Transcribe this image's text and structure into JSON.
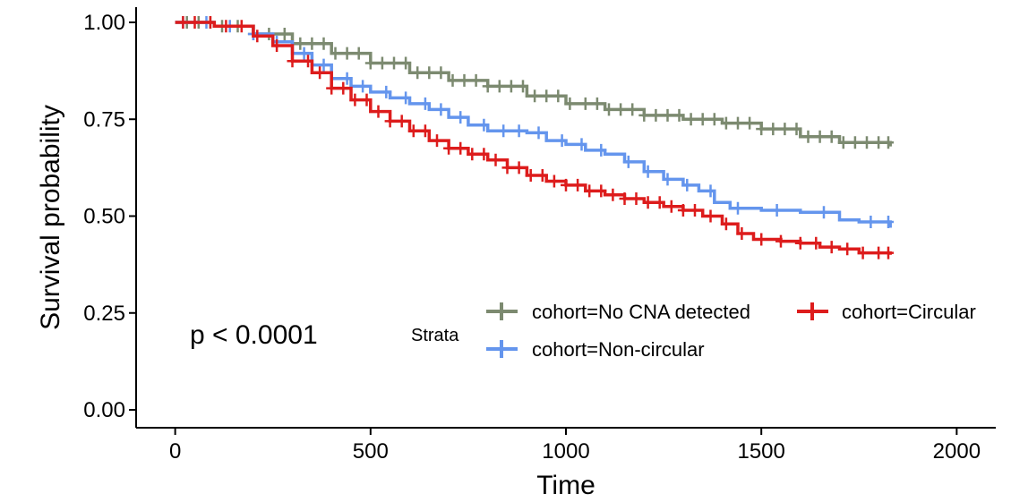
{
  "chart_data": {
    "type": "line",
    "subtype": "kaplan-meier",
    "title": "",
    "xlabel": "Time",
    "ylabel": "Survival probability",
    "xlim": [
      -100,
      2100
    ],
    "ylim": [
      0,
      1.0
    ],
    "x_ticks": [
      0,
      500,
      1000,
      1500,
      2000
    ],
    "x_tick_labels": [
      "0",
      "500",
      "1000",
      "1500",
      "2000"
    ],
    "y_ticks": [
      0,
      0.25,
      0.5,
      0.75,
      1.0
    ],
    "y_tick_labels": [
      "0.00",
      "0.25",
      "0.50",
      "0.75",
      "1.00"
    ],
    "grid": false,
    "annotation": "p < 0.0001",
    "legend": {
      "title": "Strata",
      "placement": "bottom-right"
    },
    "series": [
      {
        "name": "cohort=No CNA detected",
        "color": "#7c8a70",
        "points": [
          [
            0,
            1.0
          ],
          [
            100,
            0.99
          ],
          [
            200,
            0.97
          ],
          [
            300,
            0.945
          ],
          [
            400,
            0.92
          ],
          [
            500,
            0.895
          ],
          [
            600,
            0.87
          ],
          [
            700,
            0.85
          ],
          [
            800,
            0.835
          ],
          [
            900,
            0.81
          ],
          [
            1000,
            0.79
          ],
          [
            1100,
            0.775
          ],
          [
            1200,
            0.76
          ],
          [
            1300,
            0.75
          ],
          [
            1400,
            0.74
          ],
          [
            1500,
            0.725
          ],
          [
            1600,
            0.705
          ],
          [
            1700,
            0.69
          ],
          [
            1830,
            0.68
          ]
        ],
        "censor_times": [
          30,
          60,
          90,
          120,
          160,
          200,
          240,
          280,
          320,
          350,
          380,
          410,
          440,
          470,
          500,
          530,
          560,
          590,
          620,
          650,
          680,
          710,
          740,
          770,
          800,
          830,
          860,
          890,
          920,
          950,
          980,
          1010,
          1050,
          1080,
          1110,
          1140,
          1170,
          1200,
          1230,
          1260,
          1290,
          1320,
          1350,
          1380,
          1410,
          1440,
          1470,
          1500,
          1530,
          1560,
          1590,
          1620,
          1650,
          1680,
          1710,
          1740,
          1770,
          1800,
          1825
        ]
      },
      {
        "name": "cohort=Non-circular",
        "color": "#6495ed",
        "points": [
          [
            0,
            1.0
          ],
          [
            100,
            0.99
          ],
          [
            200,
            0.97
          ],
          [
            250,
            0.95
          ],
          [
            300,
            0.92
          ],
          [
            350,
            0.89
          ],
          [
            400,
            0.855
          ],
          [
            450,
            0.835
          ],
          [
            500,
            0.82
          ],
          [
            550,
            0.805
          ],
          [
            600,
            0.79
          ],
          [
            650,
            0.775
          ],
          [
            700,
            0.755
          ],
          [
            750,
            0.735
          ],
          [
            800,
            0.72
          ],
          [
            900,
            0.715
          ],
          [
            950,
            0.695
          ],
          [
            1000,
            0.685
          ],
          [
            1050,
            0.67
          ],
          [
            1100,
            0.66
          ],
          [
            1150,
            0.64
          ],
          [
            1200,
            0.615
          ],
          [
            1250,
            0.595
          ],
          [
            1300,
            0.58
          ],
          [
            1340,
            0.565
          ],
          [
            1380,
            0.535
          ],
          [
            1420,
            0.52
          ],
          [
            1500,
            0.515
          ],
          [
            1600,
            0.51
          ],
          [
            1700,
            0.49
          ],
          [
            1750,
            0.485
          ],
          [
            1830,
            0.47
          ]
        ],
        "censor_times": [
          20,
          80,
          140,
          200,
          260,
          330,
          380,
          440,
          480,
          540,
          590,
          640,
          680,
          730,
          790,
          840,
          880,
          930,
          990,
          1040,
          1090,
          1160,
          1210,
          1260,
          1310,
          1370,
          1440,
          1540,
          1660,
          1780,
          1825
        ]
      },
      {
        "name": "cohort=Circular",
        "color": "#dd1c1c",
        "points": [
          [
            0,
            1.0
          ],
          [
            100,
            0.99
          ],
          [
            200,
            0.965
          ],
          [
            250,
            0.94
          ],
          [
            300,
            0.9
          ],
          [
            350,
            0.87
          ],
          [
            400,
            0.83
          ],
          [
            450,
            0.8
          ],
          [
            500,
            0.77
          ],
          [
            550,
            0.745
          ],
          [
            600,
            0.72
          ],
          [
            650,
            0.695
          ],
          [
            700,
            0.675
          ],
          [
            750,
            0.66
          ],
          [
            800,
            0.645
          ],
          [
            850,
            0.625
          ],
          [
            900,
            0.605
          ],
          [
            950,
            0.59
          ],
          [
            1000,
            0.58
          ],
          [
            1050,
            0.565
          ],
          [
            1100,
            0.555
          ],
          [
            1150,
            0.545
          ],
          [
            1200,
            0.535
          ],
          [
            1250,
            0.525
          ],
          [
            1300,
            0.515
          ],
          [
            1350,
            0.5
          ],
          [
            1400,
            0.48
          ],
          [
            1440,
            0.455
          ],
          [
            1480,
            0.44
          ],
          [
            1550,
            0.435
          ],
          [
            1600,
            0.43
          ],
          [
            1650,
            0.42
          ],
          [
            1700,
            0.415
          ],
          [
            1750,
            0.405
          ],
          [
            1830,
            0.4
          ]
        ],
        "censor_times": [
          20,
          50,
          90,
          130,
          170,
          210,
          260,
          300,
          340,
          370,
          400,
          430,
          460,
          490,
          520,
          550,
          580,
          610,
          640,
          670,
          700,
          730,
          760,
          790,
          820,
          850,
          880,
          910,
          940,
          970,
          1000,
          1030,
          1060,
          1090,
          1120,
          1150,
          1180,
          1210,
          1240,
          1270,
          1300,
          1330,
          1370,
          1410,
          1450,
          1500,
          1550,
          1600,
          1640,
          1680,
          1720,
          1760,
          1800,
          1825
        ]
      }
    ]
  }
}
